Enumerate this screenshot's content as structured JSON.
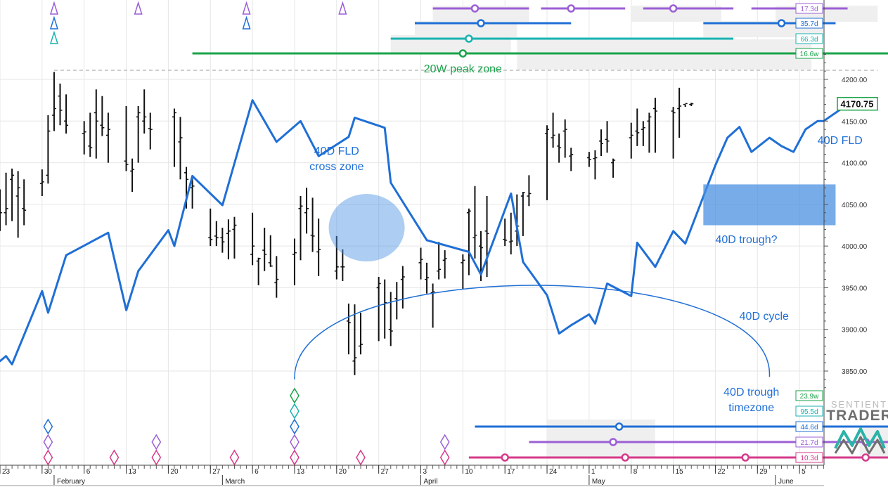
{
  "colors": {
    "price": "#111111",
    "fld": "#1f6fd6",
    "annotation_blue": "#1f6fd6",
    "peak_zone_green": "#1aa34a",
    "c17": "#9b5fd6",
    "c35": "#1f6fd6",
    "c66": "#18b3b0",
    "c16w": "#1aa34a",
    "c23w": "#1aa34a",
    "c95": "#18b3b0",
    "c44": "#1f6fd6",
    "c21": "#9b5fd6",
    "c10": "#d63a8a",
    "grid": "#e6e6e6",
    "trough_box": "#4a90e2"
  },
  "chart_data": {
    "type": "line",
    "ylim": [
      3830,
      4230
    ],
    "x_start": "2023-01-23",
    "x_end": "2023-06-06",
    "y_ticks": [
      "4200.00",
      "4150.00",
      "4100.00",
      "4050.00",
      "4000.00",
      "3950.00",
      "3900.00",
      "3850.00"
    ],
    "y_tick_values": [
      4200,
      4150,
      4100,
      4050,
      4000,
      3950,
      3900,
      3850
    ],
    "x_ticks": [
      {
        "label": "23",
        "date": "2023-01-23"
      },
      {
        "label": "30",
        "date": "2023-01-30"
      },
      {
        "label": "6",
        "date": "2023-02-06"
      },
      {
        "label": "13",
        "date": "2023-02-13"
      },
      {
        "label": "20",
        "date": "2023-02-20"
      },
      {
        "label": "27",
        "date": "2023-02-27"
      },
      {
        "label": "6",
        "date": "2023-03-06"
      },
      {
        "label": "13",
        "date": "2023-03-13"
      },
      {
        "label": "20",
        "date": "2023-03-20"
      },
      {
        "label": "27",
        "date": "2023-03-27"
      },
      {
        "label": "3",
        "date": "2023-04-03"
      },
      {
        "label": "10",
        "date": "2023-04-10"
      },
      {
        "label": "17",
        "date": "2023-04-17"
      },
      {
        "label": "24",
        "date": "2023-04-24"
      },
      {
        "label": "1",
        "date": "2023-05-01"
      },
      {
        "label": "8",
        "date": "2023-05-08"
      },
      {
        "label": "15",
        "date": "2023-05-15"
      },
      {
        "label": "22",
        "date": "2023-05-22"
      },
      {
        "label": "29",
        "date": "2023-05-29"
      },
      {
        "label": "5",
        "date": "2023-06-05"
      }
    ],
    "month_labels": [
      {
        "label": "February",
        "date": "2023-02-01"
      },
      {
        "label": "March",
        "date": "2023-03-01"
      },
      {
        "label": "April",
        "date": "2023-04-03"
      },
      {
        "label": "May",
        "date": "2023-05-01"
      },
      {
        "label": "June",
        "date": "2023-06-01"
      }
    ],
    "last_price": "4170.75",
    "last_price_value": 4170.75,
    "price_bars": [
      {
        "date": "2023-01-19",
        "high": 4044,
        "low": 3957,
        "open": 4035,
        "close": 4038
      },
      {
        "date": "2023-01-20",
        "high": 4065,
        "low": 3962,
        "open": 4040,
        "close": 4060
      },
      {
        "date": "2023-01-23",
        "high": 4068,
        "low": 4018,
        "open": 4025,
        "close": 4040
      },
      {
        "date": "2023-01-24",
        "high": 4088,
        "low": 4025,
        "open": 4040,
        "close": 4045
      },
      {
        "date": "2023-01-25",
        "high": 4093,
        "low": 4030,
        "open": 4080,
        "close": 4085
      },
      {
        "date": "2023-01-26",
        "high": 4090,
        "low": 4010,
        "open": 4060,
        "close": 4070
      },
      {
        "date": "2023-01-27",
        "high": 4080,
        "low": 4025,
        "open": 4045,
        "close": 4043
      },
      {
        "date": "2023-01-30",
        "high": 4092,
        "low": 4060,
        "open": 4075,
        "close": 4077
      },
      {
        "date": "2023-01-31",
        "high": 4157,
        "low": 4075,
        "open": 4085,
        "close": 4138
      },
      {
        "date": "2023-02-01",
        "high": 4209,
        "low": 4138,
        "open": 4157,
        "close": 4165
      },
      {
        "date": "2023-02-02",
        "high": 4195,
        "low": 4145,
        "open": 4180,
        "close": 4163
      },
      {
        "date": "2023-02-03",
        "high": 4182,
        "low": 4135,
        "open": 4150,
        "close": 4145
      },
      {
        "date": "2023-02-06",
        "high": 4150,
        "low": 4110,
        "open": 4135,
        "close": 4137
      },
      {
        "date": "2023-02-07",
        "high": 4160,
        "low": 4107,
        "open": 4120,
        "close": 4118
      },
      {
        "date": "2023-02-08",
        "high": 4188,
        "low": 4105,
        "open": 4160,
        "close": 4150
      },
      {
        "date": "2023-02-09",
        "high": 4180,
        "low": 4132,
        "open": 4145,
        "close": 4142
      },
      {
        "date": "2023-02-10",
        "high": 4160,
        "low": 4100,
        "open": 4133,
        "close": 4140
      },
      {
        "date": "2023-02-13",
        "high": 4168,
        "low": 4090,
        "open": 4102,
        "close": 4098
      },
      {
        "date": "2023-02-14",
        "high": 4105,
        "low": 4065,
        "open": 4090,
        "close": 4092
      },
      {
        "date": "2023-02-15",
        "high": 4168,
        "low": 4100,
        "open": 4155,
        "close": 4160
      },
      {
        "date": "2023-02-16",
        "high": 4188,
        "low": 4135,
        "open": 4150,
        "close": 4155
      },
      {
        "date": "2023-02-17",
        "high": 4160,
        "low": 4116,
        "open": 4141,
        "close": 4140
      },
      {
        "date": "2023-02-21",
        "high": 4165,
        "low": 4095,
        "open": 4155,
        "close": 4160
      },
      {
        "date": "2023-02-22",
        "high": 4155,
        "low": 4080,
        "open": 4125,
        "close": 4130
      },
      {
        "date": "2023-02-23",
        "high": 4095,
        "low": 4045,
        "open": 4088,
        "close": 4080
      },
      {
        "date": "2023-02-24",
        "high": 4085,
        "low": 4045,
        "open": 4070,
        "close": 4072
      },
      {
        "date": "2023-02-27",
        "high": 4045,
        "low": 4000,
        "open": 4010,
        "close": 4008
      },
      {
        "date": "2023-02-28",
        "high": 4030,
        "low": 4000,
        "open": 4012,
        "close": 4010
      },
      {
        "date": "2023-03-01",
        "high": 4022,
        "low": 3992,
        "open": 4010,
        "close": 4005
      },
      {
        "date": "2023-03-02",
        "high": 4032,
        "low": 3984,
        "open": 4015,
        "close": 4018
      },
      {
        "date": "2023-03-03",
        "high": 4035,
        "low": 3985,
        "open": 4020,
        "close": 4025
      },
      {
        "date": "2023-03-06",
        "high": 4040,
        "low": 3977,
        "open": 3990,
        "close": 4000
      },
      {
        "date": "2023-03-07",
        "high": 3986,
        "low": 3953,
        "open": 3982,
        "close": 3985
      },
      {
        "date": "2023-03-08",
        "high": 4022,
        "low": 3970,
        "open": 3995,
        "close": 3990
      },
      {
        "date": "2023-03-09",
        "high": 4013,
        "low": 3975,
        "open": 3980,
        "close": 3976
      },
      {
        "date": "2023-03-10",
        "high": 3988,
        "low": 3938,
        "open": 3956,
        "close": 3960
      },
      {
        "date": "2023-03-13",
        "high": 4009,
        "low": 3953,
        "open": 3990,
        "close": 3992
      },
      {
        "date": "2023-03-14",
        "high": 4060,
        "low": 3983,
        "open": 4045,
        "close": 4048
      },
      {
        "date": "2023-03-15",
        "high": 4070,
        "low": 4015,
        "open": 4040,
        "close": 4045
      },
      {
        "date": "2023-03-16",
        "high": 4058,
        "low": 3993,
        "open": 4013,
        "close": 4012
      },
      {
        "date": "2023-03-17",
        "high": 4033,
        "low": 3964,
        "open": 3993,
        "close": 3996
      },
      {
        "date": "2023-03-20",
        "high": 4012,
        "low": 3960,
        "open": 3970,
        "close": 3975
      },
      {
        "date": "2023-03-21",
        "high": 3996,
        "low": 3958,
        "open": 3975,
        "close": 3975
      },
      {
        "date": "2023-03-22",
        "high": 3931,
        "low": 3870,
        "open": 3910,
        "close": 3908
      },
      {
        "date": "2023-03-23",
        "high": 3930,
        "low": 3845,
        "open": 3862,
        "close": 3866
      },
      {
        "date": "2023-03-24",
        "high": 3920,
        "low": 3870,
        "open": 3880,
        "close": 3882
      },
      {
        "date": "2023-03-27",
        "high": 3963,
        "low": 3886,
        "open": 3950,
        "close": 3955
      },
      {
        "date": "2023-03-28",
        "high": 3960,
        "low": 3889,
        "open": 3930,
        "close": 3932
      },
      {
        "date": "2023-03-29",
        "high": 3945,
        "low": 3880,
        "open": 3900,
        "close": 3898
      },
      {
        "date": "2023-03-30",
        "high": 3957,
        "low": 3912,
        "open": 3937,
        "close": 3935
      },
      {
        "date": "2023-03-31",
        "high": 3976,
        "low": 3925,
        "open": 3960,
        "close": 3963
      },
      {
        "date": "2023-04-03",
        "high": 3998,
        "low": 3960,
        "open": 3980,
        "close": 3984
      },
      {
        "date": "2023-04-04",
        "high": 3980,
        "low": 3943,
        "open": 3960,
        "close": 3962
      },
      {
        "date": "2023-04-05",
        "high": 3955,
        "low": 3902,
        "open": 3944,
        "close": 3945
      },
      {
        "date": "2023-04-06",
        "high": 4005,
        "low": 3960,
        "open": 3970,
        "close": 3972
      },
      {
        "date": "2023-04-07",
        "high": 3995,
        "low": 3961,
        "open": 3983,
        "close": 3985
      },
      {
        "date": "2023-04-10",
        "high": 3990,
        "low": 3948,
        "open": 3980,
        "close": 3983
      },
      {
        "date": "2023-04-11",
        "high": 4045,
        "low": 3965,
        "open": 4040,
        "close": 4042
      },
      {
        "date": "2023-04-12",
        "high": 4072,
        "low": 3985,
        "open": 4010,
        "close": 4013
      },
      {
        "date": "2023-04-13",
        "high": 4018,
        "low": 3958,
        "open": 4000,
        "close": 3998
      },
      {
        "date": "2023-04-14",
        "high": 4060,
        "low": 3963,
        "open": 4018,
        "close": 4015
      },
      {
        "date": "2023-04-17",
        "high": 4033,
        "low": 4000,
        "open": 4008,
        "close": 4007
      },
      {
        "date": "2023-04-18",
        "high": 4040,
        "low": 3990,
        "open": 4005,
        "close": 4006
      },
      {
        "date": "2023-04-19",
        "high": 4062,
        "low": 4000,
        "open": 4018,
        "close": 4024
      },
      {
        "date": "2023-04-20",
        "high": 4065,
        "low": 4012,
        "open": 4060,
        "close": 4064
      },
      {
        "date": "2023-04-21",
        "high": 4085,
        "low": 4048,
        "open": 4060,
        "close": 4063
      },
      {
        "date": "2023-04-24",
        "high": 4145,
        "low": 4055,
        "open": 4135,
        "close": 4140
      },
      {
        "date": "2023-04-25",
        "high": 4160,
        "low": 4118,
        "open": 4130,
        "close": 4133
      },
      {
        "date": "2023-04-26",
        "high": 4135,
        "low": 4100,
        "open": 4120,
        "close": 4118
      },
      {
        "date": "2023-04-27",
        "high": 4152,
        "low": 4106,
        "open": 4138,
        "close": 4140
      },
      {
        "date": "2023-04-28",
        "high": 4118,
        "low": 4090,
        "open": 4108,
        "close": 4110
      },
      {
        "date": "2023-05-01",
        "high": 4113,
        "low": 4095,
        "open": 4106,
        "close": 4104
      },
      {
        "date": "2023-05-02",
        "high": 4115,
        "low": 4080,
        "open": 4105,
        "close": 4106
      },
      {
        "date": "2023-05-03",
        "high": 4140,
        "low": 4108,
        "open": 4126,
        "close": 4123
      },
      {
        "date": "2023-05-04",
        "high": 4150,
        "low": 4112,
        "open": 4128,
        "close": 4126
      },
      {
        "date": "2023-05-05",
        "high": 4105,
        "low": 4082,
        "open": 4100,
        "close": 4103
      },
      {
        "date": "2023-05-08",
        "high": 4148,
        "low": 4105,
        "open": 4130,
        "close": 4133
      },
      {
        "date": "2023-05-09",
        "high": 4165,
        "low": 4120,
        "open": 4138,
        "close": 4136
      },
      {
        "date": "2023-05-10",
        "high": 4150,
        "low": 4120,
        "open": 4140,
        "close": 4142
      },
      {
        "date": "2023-05-11",
        "high": 4160,
        "low": 4112,
        "open": 4150,
        "close": 4155
      },
      {
        "date": "2023-05-12",
        "high": 4178,
        "low": 4112,
        "open": 4165,
        "close": 4162
      },
      {
        "date": "2023-05-15",
        "high": 4167,
        "low": 4105,
        "open": 4162,
        "close": 4160
      },
      {
        "date": "2023-05-16",
        "high": 4190,
        "low": 4130,
        "open": 4165,
        "close": 4168
      },
      {
        "date": "2023-05-17",
        "high": 4170,
        "low": 4167,
        "open": 4170,
        "close": 4171
      },
      {
        "date": "2023-05-18",
        "high": 4172,
        "low": 4168,
        "open": 4170,
        "close": 4170.75
      }
    ],
    "series": [
      {
        "name": "40D FLD",
        "points": [
          [
            "2023-01-19",
            3843
          ],
          [
            "2023-01-23",
            3862
          ],
          [
            "2023-01-24",
            3868
          ],
          [
            "2023-01-25",
            3858
          ],
          [
            "2023-01-30",
            3946
          ],
          [
            "2023-01-31",
            3920
          ],
          [
            "2023-02-03",
            3989
          ],
          [
            "2023-02-10",
            4016
          ],
          [
            "2023-02-13",
            3923
          ],
          [
            "2023-02-15",
            3970
          ],
          [
            "2023-02-20",
            4019
          ],
          [
            "2023-02-21",
            4000
          ],
          [
            "2023-02-24",
            4084
          ],
          [
            "2023-03-01",
            4049
          ],
          [
            "2023-03-06",
            4175
          ],
          [
            "2023-03-10",
            4125
          ],
          [
            "2023-03-14",
            4150
          ],
          [
            "2023-03-17",
            4108
          ],
          [
            "2023-03-22",
            4131
          ],
          [
            "2023-03-23",
            4154
          ],
          [
            "2023-03-28",
            4142
          ],
          [
            "2023-03-29",
            4076
          ],
          [
            "2023-04-04",
            4007
          ],
          [
            "2023-04-05",
            4005
          ],
          [
            "2023-04-11",
            3993
          ],
          [
            "2023-04-13",
            3966
          ],
          [
            "2023-04-18",
            4063
          ],
          [
            "2023-04-20",
            3981
          ],
          [
            "2023-04-24",
            3941
          ],
          [
            "2023-04-26",
            3895
          ],
          [
            "2023-04-28",
            3905
          ],
          [
            "2023-05-01",
            3918
          ],
          [
            "2023-05-02",
            3907
          ],
          [
            "2023-05-04",
            3955
          ],
          [
            "2023-05-08",
            3940
          ],
          [
            "2023-05-09",
            4004
          ],
          [
            "2023-05-12",
            3975
          ],
          [
            "2023-05-15",
            4018
          ],
          [
            "2023-05-17",
            4003
          ],
          [
            "2023-05-22",
            4097
          ],
          [
            "2023-05-24",
            4130
          ],
          [
            "2023-05-26",
            4143
          ],
          [
            "2023-05-28",
            4113
          ],
          [
            "2023-05-31",
            4130
          ],
          [
            "2023-06-02",
            4120
          ],
          [
            "2023-06-04",
            4113
          ],
          [
            "2023-06-06",
            4140
          ],
          [
            "2023-06-08",
            4150
          ],
          [
            "2023-06-09",
            4150
          ],
          [
            "2023-06-13",
            4170
          ]
        ]
      }
    ],
    "annotations": [
      {
        "text": "20W peak zone",
        "color_key": "peak_zone_green"
      },
      {
        "text": "40D FLD",
        "color_key": "annotation_blue"
      },
      {
        "text": "40D FLD",
        "color_key": "annotation_blue"
      },
      {
        "text": "cross zone",
        "color_key": "annotation_blue"
      },
      {
        "text": "40D trough?",
        "color_key": "annotation_blue"
      },
      {
        "text": "40D cycle",
        "color_key": "annotation_blue"
      },
      {
        "text": "40D trough",
        "color_key": "annotation_blue"
      },
      {
        "text": "timezone",
        "color_key": "annotation_blue"
      }
    ],
    "cycle_tags_top": [
      {
        "label": "17.3d",
        "color_key": "c17"
      },
      {
        "label": "35.7d",
        "color_key": "c35"
      },
      {
        "label": "66.3d",
        "color_key": "c66"
      },
      {
        "label": "16.6w",
        "color_key": "c16w"
      }
    ],
    "cycle_tags_bottom": [
      {
        "label": "23.9w",
        "color_key": "c23w"
      },
      {
        "label": "95.5d",
        "color_key": "c95"
      },
      {
        "label": "44.6d",
        "color_key": "c44"
      },
      {
        "label": "21.7d",
        "color_key": "c21"
      },
      {
        "label": "10.3d",
        "color_key": "c10"
      }
    ]
  },
  "logo": {
    "line1": "SENTIENT",
    "line2": "TRADER"
  }
}
